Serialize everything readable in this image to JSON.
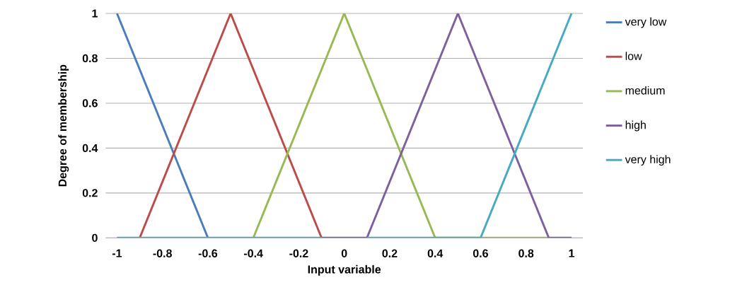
{
  "chart_data": {
    "type": "line",
    "xlabel": "Input variable",
    "ylabel": "Degree of membership",
    "xlim": [
      -1.05,
      1.05
    ],
    "ylim": [
      0,
      1
    ],
    "xticks": [
      {
        "value": -1,
        "label": "-1"
      },
      {
        "value": -0.8,
        "label": "-0.8"
      },
      {
        "value": -0.6,
        "label": "-0.6"
      },
      {
        "value": -0.4,
        "label": "-0.4"
      },
      {
        "value": -0.2,
        "label": "-0.2"
      },
      {
        "value": 0,
        "label": "0"
      },
      {
        "value": 0.2,
        "label": "0.2"
      },
      {
        "value": 0.4,
        "label": "0.4"
      },
      {
        "value": 0.6,
        "label": "0.6"
      },
      {
        "value": 0.8,
        "label": "0.8"
      },
      {
        "value": 1,
        "label": "1"
      }
    ],
    "yticks": [
      {
        "value": 0,
        "label": "0"
      },
      {
        "value": 0.2,
        "label": "0.2"
      },
      {
        "value": 0.4,
        "label": "0.4"
      },
      {
        "value": 0.6,
        "label": "0.6"
      },
      {
        "value": 0.8,
        "label": "0.8"
      },
      {
        "value": 1,
        "label": "1"
      }
    ],
    "grid": "y",
    "legend": "right",
    "marker": "none",
    "line_style": "solid",
    "series": [
      {
        "name": "very low",
        "color": "#4a7ebb",
        "x": [
          -1,
          -0.6
        ],
        "values": [
          1,
          0
        ]
      },
      {
        "name": "low",
        "color": "#be4b48",
        "x": [
          -0.9,
          -0.5,
          -0.1
        ],
        "values": [
          0,
          1,
          0
        ]
      },
      {
        "name": "medium",
        "color": "#98b954",
        "x": [
          -0.4,
          0,
          0.4,
          0.9
        ],
        "values": [
          0,
          1,
          0,
          0
        ]
      },
      {
        "name": "high",
        "color": "#7d60a0",
        "x": [
          -0.1,
          0.1,
          0.5,
          0.9,
          1
        ],
        "values": [
          0,
          0,
          1,
          0,
          0
        ]
      },
      {
        "name": "very high",
        "color": "#46aac5",
        "x": [
          -1,
          -0.1,
          null,
          0.1,
          0.6,
          1
        ],
        "values": [
          0,
          0,
          null,
          0,
          0,
          1
        ]
      }
    ]
  }
}
